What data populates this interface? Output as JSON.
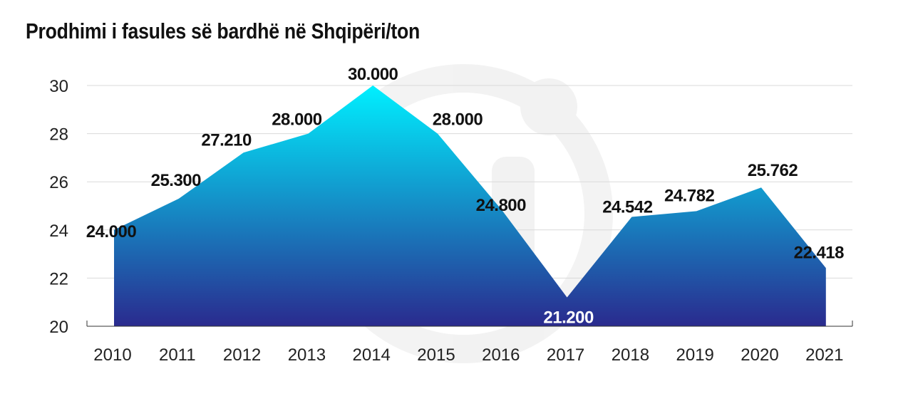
{
  "title": "Prodhimi i fasules së bardhë në Shqipëri/ton",
  "chart_data": {
    "type": "area",
    "title": "Prodhimi i fasules së bardhë në Shqipëri/ton",
    "categories": [
      "2010",
      "2011",
      "2012",
      "2013",
      "2014",
      "2015",
      "2016",
      "2017",
      "2018",
      "2019",
      "2020",
      "2021"
    ],
    "values": [
      24.0,
      25.3,
      27.21,
      28.0,
      30.0,
      28.0,
      24.8,
      21.2,
      24.542,
      24.782,
      25.762,
      22.418
    ],
    "data_labels": [
      "24.000",
      "25.300",
      "27.210",
      "28.000",
      "30.000",
      "28.000",
      "24.800",
      "21.200",
      "24.542",
      "24.782",
      "25.762",
      "22.418"
    ],
    "yticks": [
      "20",
      "22",
      "24",
      "26",
      "28",
      "30"
    ],
    "ylim": [
      20,
      30
    ],
    "grid": true,
    "colors": {
      "top": "#00f0ff",
      "bottom": "#2a2a8e",
      "grid": "#d9d9d9",
      "label_light": "#ffffff",
      "label_dark": "#111111"
    }
  }
}
